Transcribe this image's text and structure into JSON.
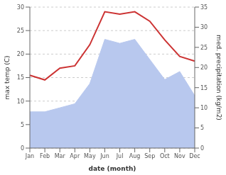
{
  "chart_data": {
    "type": "line",
    "categories": [
      "Jan",
      "Feb",
      "Mar",
      "Apr",
      "May",
      "Jun",
      "Jul",
      "Aug",
      "Sep",
      "Oct",
      "Nov",
      "Dec"
    ],
    "series": [
      {
        "type": "area",
        "color": "#b8c8ee",
        "axis": "y2",
        "values": [
          9.0,
          9.0,
          10.0,
          11.0,
          16.0,
          27.0,
          26.0,
          27.0,
          22.0,
          17.0,
          19.0,
          13.0
        ]
      },
      {
        "type": "line",
        "color": "#cc3333",
        "values": [
          15.5,
          14.5,
          17.0,
          17.5,
          22.0,
          29.0,
          28.5,
          29.0,
          27.0,
          23.0,
          19.5,
          18.5
        ]
      }
    ],
    "ylim": [
      0,
      30
    ],
    "yticks": [
      0,
      5,
      10,
      15,
      20,
      25,
      30
    ],
    "y2lim": [
      0,
      35
    ],
    "y2ticks": [
      0,
      5,
      10,
      15,
      20,
      25,
      30,
      35
    ],
    "ylabel": "max temp (C)",
    "y2label": "med. precipitation (kg/m2)",
    "xlabel": "date (month)",
    "grid": true
  }
}
